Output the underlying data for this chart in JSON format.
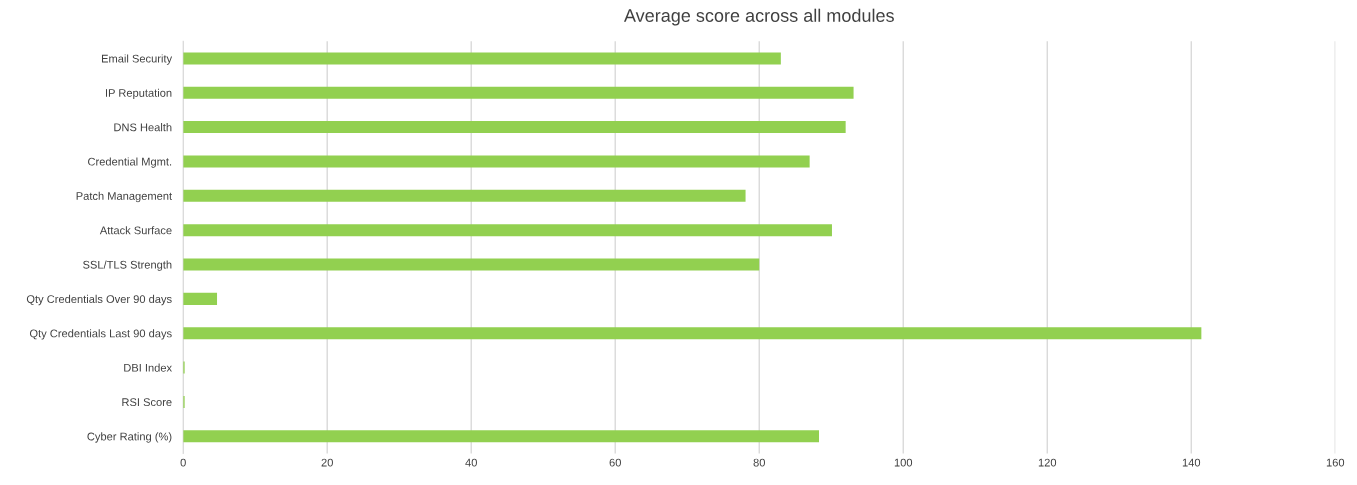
{
  "chart_data": {
    "type": "bar",
    "orientation": "horizontal",
    "title": "Average score across all modules",
    "categories": [
      "Email Security",
      "IP Reputation",
      "DNS Health",
      "Credential Mgmt.",
      "Patch Management",
      "Attack Surface",
      "SSL/TLS Strength",
      "Qty Credentials Over 90 days",
      "Qty Credentials Last 90 days",
      "DBI Index",
      "RSI Score",
      "Cyber Rating (%)"
    ],
    "values": [
      83,
      93.1,
      92,
      87,
      78.1,
      90.1,
      80,
      4.7,
      141.4,
      0.2,
      0.2,
      88.3
    ],
    "color": "#92d050",
    "xlim": [
      0,
      160
    ],
    "xticks": [
      0,
      20,
      40,
      60,
      80,
      100,
      120,
      140,
      160
    ],
    "grid": "x",
    "legend": false
  }
}
